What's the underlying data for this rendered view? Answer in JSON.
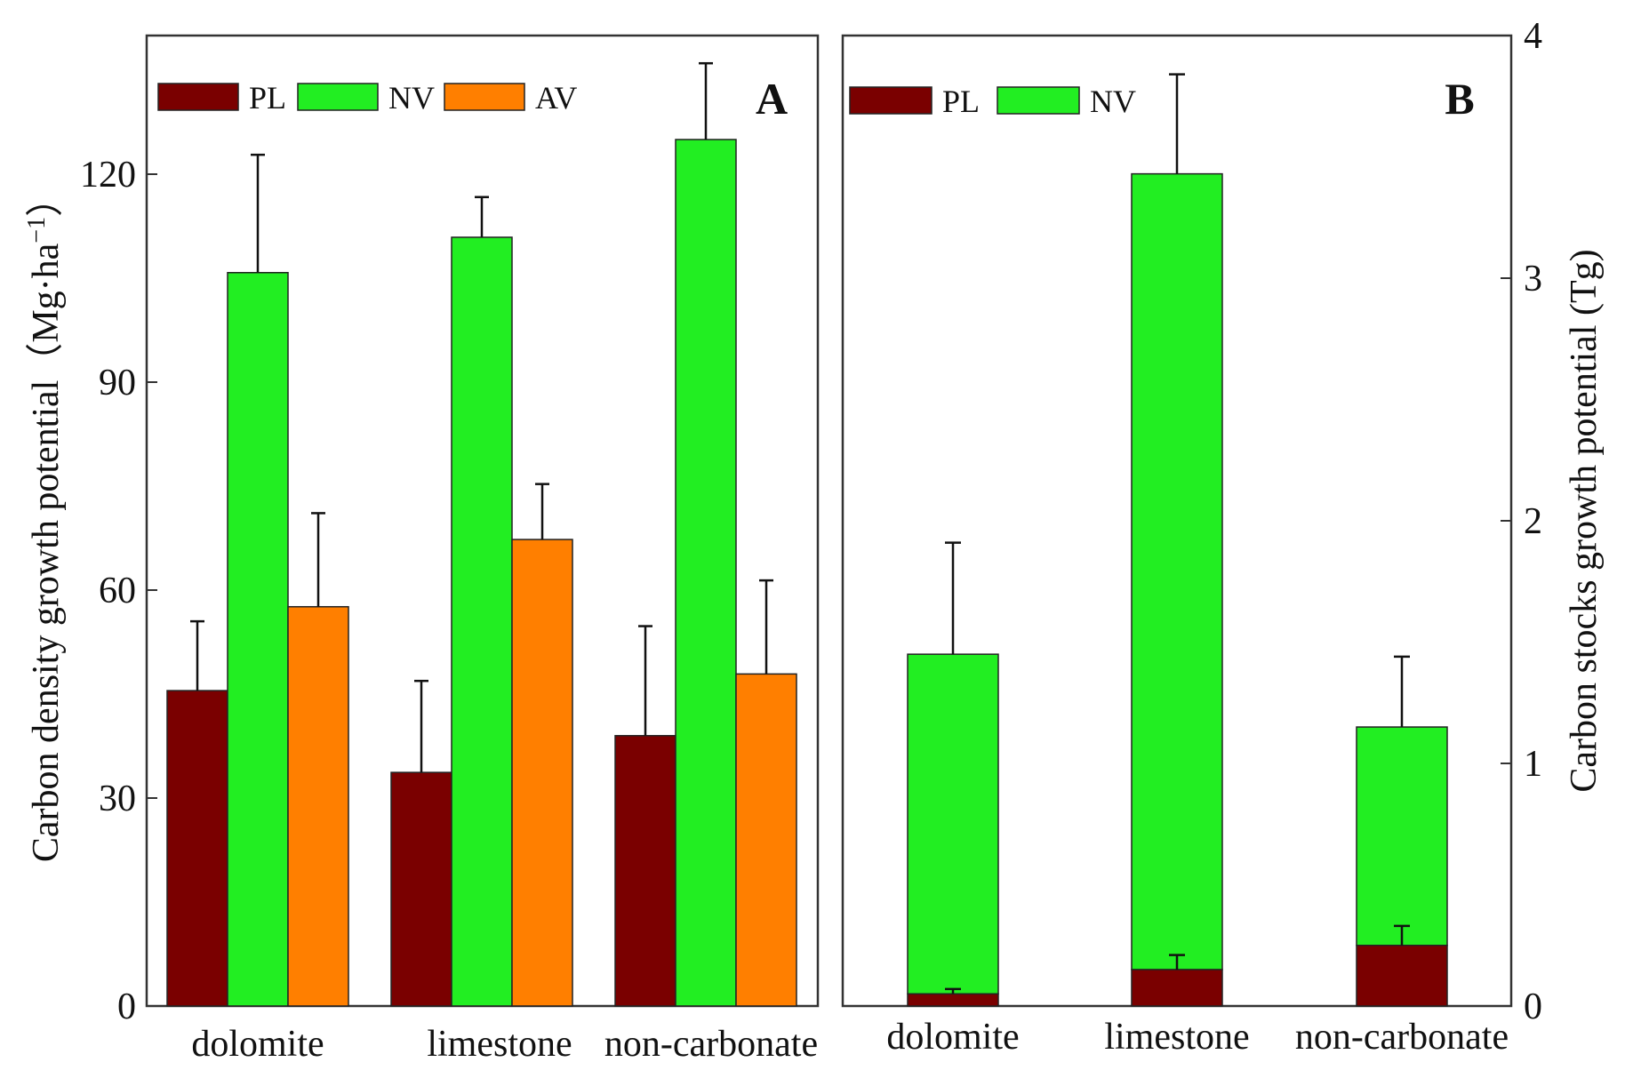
{
  "colors": {
    "PL": "#7a0000",
    "NV": "#22ee22",
    "AV": "#ff7f00",
    "axis": "#333333"
  },
  "chart_data": [
    {
      "panel": "A",
      "type": "bar",
      "ylabel": "Carbon density growth potential（Mg·ha",
      "ylabel_sup": "−1",
      "ylabel_close": "）",
      "ylim": [
        0,
        140
      ],
      "yticks": [
        0,
        30,
        60,
        90,
        120
      ],
      "categories": [
        "dolomite",
        "limestone",
        "non-carbonate"
      ],
      "legend": {
        "position": "top-left",
        "entries": [
          "PL",
          "NV",
          "AV"
        ]
      },
      "series": [
        {
          "name": "PL",
          "values": [
            45.5,
            33.7,
            39.0
          ],
          "errors": [
            10.0,
            13.2,
            15.8
          ]
        },
        {
          "name": "NV",
          "values": [
            105.8,
            110.9,
            125.0
          ],
          "errors": [
            17.0,
            5.8,
            11.0
          ]
        },
        {
          "name": "AV",
          "values": [
            57.6,
            67.3,
            47.9
          ],
          "errors": [
            13.5,
            8.0,
            13.5
          ]
        }
      ]
    },
    {
      "panel": "B",
      "type": "bar",
      "stacked": true,
      "ylabel": "Carbon stocks growth potential (Tg)",
      "y_axis_side": "right",
      "ylim": [
        0,
        4
      ],
      "yticks": [
        0,
        1,
        2,
        3,
        4
      ],
      "categories": [
        "dolomite",
        "limestone",
        "non-carbonate"
      ],
      "legend": {
        "position": "top-left",
        "entries": [
          "PL",
          "NV"
        ]
      },
      "series": [
        {
          "name": "PL",
          "values": [
            0.05,
            0.15,
            0.25
          ],
          "errors": [
            0.02,
            0.06,
            0.08
          ]
        },
        {
          "name": "NV",
          "values": [
            1.4,
            3.28,
            0.9
          ],
          "errors": [
            0.46,
            0.41,
            0.29
          ]
        }
      ]
    }
  ]
}
